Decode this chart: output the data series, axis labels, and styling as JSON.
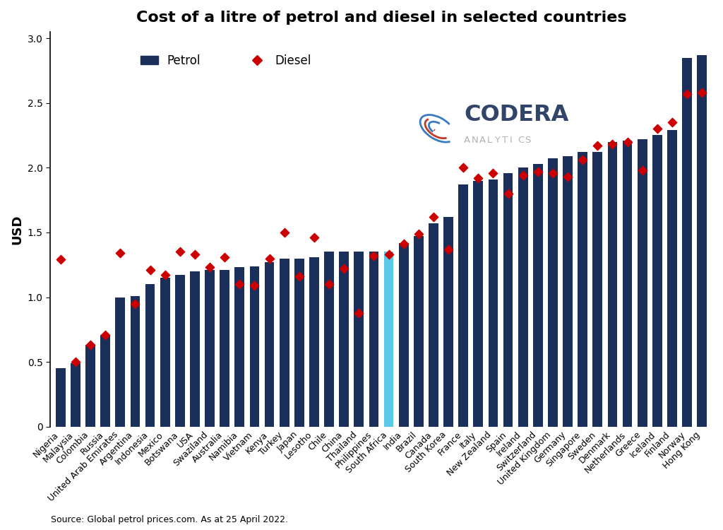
{
  "title": "Cost of a litre of petrol and diesel in selected countries",
  "ylabel": "USD",
  "source": "Source: Global petrol prices.com. As at 25 April 2022.",
  "countries": [
    "Nigeria",
    "Malaysia",
    "Colombia",
    "Russia",
    "United Arab Emirates",
    "Argentina",
    "Indonesia",
    "Mexico",
    "Botswana",
    "USA",
    "Swaziland",
    "Australia",
    "Namibia",
    "Vietnam",
    "Kenya",
    "Turkey",
    "Japan",
    "Lesotho",
    "Chile",
    "China",
    "Thailand",
    "Philippines",
    "South Africa",
    "India",
    "Brazil",
    "Canada",
    "South Korea",
    "France",
    "Italy",
    "New Zealand",
    "Spain",
    "Ireland",
    "Switzerland",
    "United Kingdom",
    "Germany",
    "Singapore",
    "Sweden",
    "Denmark",
    "Netherlands",
    "Greece",
    "Iceland",
    "Finland",
    "Norway",
    "Hong Kong"
  ],
  "petrol": [
    0.45,
    0.49,
    0.63,
    0.71,
    1.0,
    1.01,
    1.1,
    1.15,
    1.17,
    1.2,
    1.21,
    1.21,
    1.23,
    1.24,
    1.27,
    1.3,
    1.3,
    1.31,
    1.35,
    1.35,
    1.35,
    1.35,
    1.35,
    1.42,
    1.47,
    1.57,
    1.62,
    1.87,
    1.9,
    1.91,
    1.96,
    2.0,
    2.03,
    2.07,
    2.09,
    2.12,
    2.12,
    2.2,
    2.21,
    2.22,
    2.25,
    2.29,
    2.85,
    2.87
  ],
  "diesel": [
    1.29,
    0.5,
    0.63,
    0.71,
    1.34,
    0.95,
    1.21,
    1.17,
    1.35,
    1.33,
    1.23,
    1.31,
    1.1,
    1.09,
    1.3,
    1.5,
    1.16,
    1.46,
    1.1,
    1.22,
    0.88,
    1.32,
    1.33,
    1.41,
    1.49,
    1.62,
    1.37,
    2.0,
    1.92,
    1.96,
    1.8,
    1.94,
    1.97,
    1.96,
    1.93,
    2.06,
    2.17,
    2.18,
    2.2,
    1.98,
    2.3,
    2.35,
    2.57,
    2.58
  ],
  "bar_colors": [
    "#1a2f5a",
    "#1a2f5a",
    "#1a2f5a",
    "#1a2f5a",
    "#1a2f5a",
    "#1a2f5a",
    "#1a2f5a",
    "#1a2f5a",
    "#1a2f5a",
    "#1a2f5a",
    "#1a2f5a",
    "#1a2f5a",
    "#1a2f5a",
    "#1a2f5a",
    "#1a2f5a",
    "#1a2f5a",
    "#1a2f5a",
    "#1a2f5a",
    "#1a2f5a",
    "#1a2f5a",
    "#1a2f5a",
    "#1a2f5a",
    "#5bc8e8",
    "#1a2f5a",
    "#1a2f5a",
    "#1a2f5a",
    "#1a2f5a",
    "#1a2f5a",
    "#1a2f5a",
    "#1a2f5a",
    "#1a2f5a",
    "#1a2f5a",
    "#1a2f5a",
    "#1a2f5a",
    "#1a2f5a",
    "#1a2f5a",
    "#1a2f5a",
    "#1a2f5a",
    "#1a2f5a",
    "#1a2f5a",
    "#1a2f5a",
    "#1a2f5a",
    "#1a2f5a",
    "#1a2f5a"
  ],
  "diesel_color": "#cc0000",
  "dark_navy": "#1a2f5a",
  "ylim": [
    0,
    3.05
  ],
  "yticks": [
    0,
    0.5,
    1.0,
    1.5,
    2.0,
    2.5,
    3.0
  ],
  "title_fontsize": 16,
  "label_fontsize": 11,
  "tick_fontsize": 9,
  "background_color": "#ffffff",
  "codera_text": "CODERA",
  "analytics_text": "ANALYTICS",
  "codera_color": "#1a2f5a",
  "analytics_color": "#aaaaaa"
}
